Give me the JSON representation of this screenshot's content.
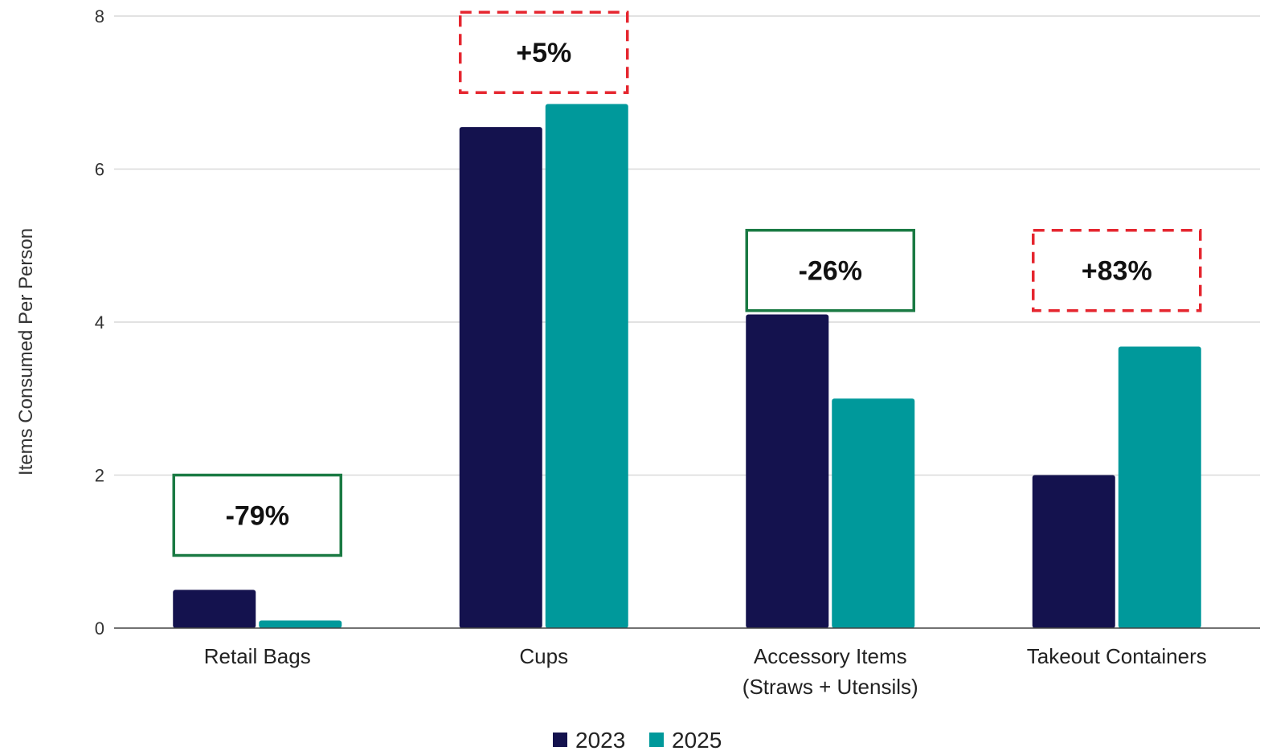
{
  "chart_data": {
    "type": "bar",
    "title": "",
    "xlabel": "",
    "ylabel": "Items Consumed Per Person",
    "ylim": [
      0,
      8
    ],
    "yticks": [
      0,
      2,
      4,
      6,
      8
    ],
    "grid": true,
    "legend_position": "bottom-center",
    "categories": [
      [
        "Retail Bags"
      ],
      [
        "Cups"
      ],
      [
        "Accessory Items",
        "(Straws + Utensils)"
      ],
      [
        "Takeout Containers"
      ]
    ],
    "series": [
      {
        "name": "2023",
        "color": "#14124e",
        "values": [
          0.5,
          6.55,
          4.1,
          2.0
        ]
      },
      {
        "name": "2025",
        "color": "#00999b",
        "values": [
          0.1,
          6.85,
          3.0,
          3.68
        ]
      }
    ],
    "annotations": [
      {
        "category_index": 0,
        "text": "-79%",
        "style": "solid",
        "color": "#1a7a43",
        "y_low": 0.95,
        "y_high": 2.0
      },
      {
        "category_index": 1,
        "text": "+5%",
        "style": "dashed",
        "color": "#e5262f",
        "y_low": 7.0,
        "y_high": 8.05
      },
      {
        "category_index": 2,
        "text": "-26%",
        "style": "solid",
        "color": "#1a7a43",
        "y_low": 4.15,
        "y_high": 5.2
      },
      {
        "category_index": 3,
        "text": "+83%",
        "style": "dashed",
        "color": "#e5262f",
        "y_low": 4.15,
        "y_high": 5.2
      }
    ],
    "colors": {
      "grid": "#d9d9d9",
      "axis": "#444444"
    }
  }
}
